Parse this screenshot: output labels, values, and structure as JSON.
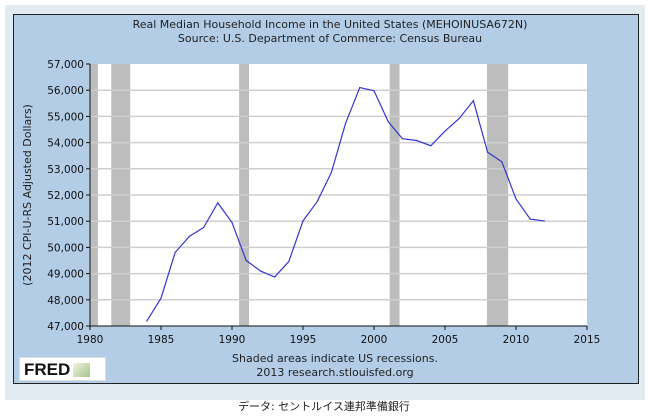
{
  "chart_data": {
    "type": "line",
    "title": "Real Median Household Income in the United States (MEHOINUSA672N)",
    "subtitle": "Source: U.S. Department of Commerce: Census Bureau",
    "ylabel": "(2012 CPI-U-RS Adjusted Dollars)",
    "xlabel": "",
    "xlim": [
      1980,
      2015
    ],
    "ylim": [
      47000,
      57000
    ],
    "xticks": [
      "1980",
      "1985",
      "1990",
      "1995",
      "2000",
      "2005",
      "2010",
      "2015"
    ],
    "yticks": [
      "47,000",
      "48,000",
      "49,000",
      "50,000",
      "51,000",
      "52,000",
      "53,000",
      "54,000",
      "55,000",
      "56,000",
      "57,000"
    ],
    "grid": true,
    "series": [
      {
        "name": "Real Median Household Income",
        "color": "#3535d0",
        "x": [
          1984,
          1985,
          1986,
          1987,
          1988,
          1989,
          1990,
          1991,
          1992,
          1993,
          1994,
          1995,
          1996,
          1997,
          1998,
          1999,
          2000,
          2001,
          2002,
          2003,
          2004,
          2005,
          2006,
          2007,
          2008,
          2009,
          2010,
          2011,
          2012
        ],
        "values": [
          47190,
          48060,
          49810,
          50420,
          50760,
          51700,
          50950,
          49500,
          49100,
          48870,
          49460,
          51010,
          51750,
          52860,
          54740,
          56100,
          55980,
          54800,
          54150,
          54080,
          53880,
          54440,
          54920,
          55600,
          53630,
          53270,
          51850,
          51080,
          51010
        ]
      }
    ],
    "recessions": [
      [
        1980.0,
        1980.56
      ],
      [
        1981.5,
        1982.83
      ],
      [
        1990.5,
        1991.2
      ],
      [
        2001.1,
        2001.8
      ],
      [
        2007.95,
        2009.45
      ]
    ],
    "note": "Shaded areas indicate US recessions.",
    "credit": "2013 research.stlouisfed.org"
  },
  "logo": "FRED",
  "caption": "データ: セントルイス連邦準備銀行"
}
